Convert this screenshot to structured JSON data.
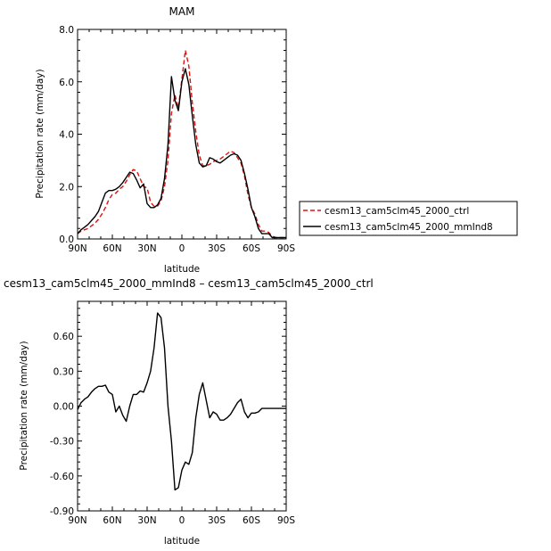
{
  "chart_data": [
    {
      "type": "line",
      "title": "MAM",
      "xlabel": "latitude",
      "ylabel": "Precipitation rate (mm/day)",
      "xlim": [
        -90,
        90
      ],
      "ylim": [
        0,
        8
      ],
      "xticks": [
        -90,
        -60,
        -30,
        0,
        30,
        60,
        90
      ],
      "xtick_labels": [
        "90N",
        "60N",
        "30N",
        "0",
        "30S",
        "60S",
        "90S"
      ],
      "yticks": [
        0,
        2,
        4,
        6,
        8
      ],
      "ytick_labels": [
        "0.0",
        "2.0",
        "4.0",
        "6.0",
        "8.0"
      ],
      "legend_position": "right",
      "series": [
        {
          "name": "cesm13_cam5clm45_2000_ctrl",
          "color": "#dd1111",
          "dash": "dashed",
          "x": [
            -90,
            -87,
            -84,
            -81,
            -78,
            -75,
            -72,
            -69,
            -66,
            -63,
            -60,
            -57,
            -54,
            -51,
            -48,
            -45,
            -42,
            -39,
            -36,
            -33,
            -30,
            -27,
            -24,
            -21,
            -18,
            -15,
            -12,
            -9,
            -6,
            -3,
            0,
            3,
            6,
            9,
            12,
            15,
            18,
            21,
            24,
            27,
            30,
            33,
            36,
            39,
            42,
            45,
            48,
            51,
            54,
            57,
            60,
            63,
            66,
            69,
            72,
            75,
            78,
            81,
            84,
            87,
            90
          ],
          "y": [
            0.2,
            0.3,
            0.35,
            0.4,
            0.5,
            0.6,
            0.75,
            0.95,
            1.2,
            1.5,
            1.7,
            1.75,
            1.9,
            2.0,
            2.2,
            2.45,
            2.65,
            2.6,
            2.3,
            2.0,
            1.95,
            1.4,
            1.25,
            1.25,
            1.45,
            2.0,
            3.0,
            4.8,
            5.5,
            5.0,
            6.1,
            7.2,
            6.6,
            5.2,
            4.1,
            3.2,
            2.8,
            2.8,
            2.85,
            2.95,
            3.0,
            3.05,
            3.15,
            3.25,
            3.35,
            3.3,
            3.1,
            2.9,
            2.4,
            1.7,
            1.2,
            0.95,
            0.55,
            0.3,
            0.3,
            0.25,
            0.1,
            0.05,
            0.05,
            0.05,
            0.05
          ]
        },
        {
          "name": "cesm13_cam5clm45_2000_mmInd8",
          "color": "#000000",
          "dash": "solid",
          "x": [
            -90,
            -87,
            -84,
            -81,
            -78,
            -75,
            -72,
            -69,
            -66,
            -63,
            -60,
            -57,
            -54,
            -51,
            -48,
            -45,
            -42,
            -39,
            -36,
            -33,
            -30,
            -27,
            -24,
            -21,
            -18,
            -15,
            -12,
            -9,
            -6,
            -3,
            0,
            3,
            6,
            9,
            12,
            15,
            18,
            21,
            24,
            27,
            30,
            33,
            36,
            39,
            42,
            45,
            48,
            51,
            54,
            57,
            60,
            63,
            66,
            69,
            72,
            75,
            78,
            81,
            84,
            87,
            90
          ],
          "y": [
            0.2,
            0.35,
            0.45,
            0.55,
            0.7,
            0.85,
            1.05,
            1.4,
            1.75,
            1.85,
            1.85,
            1.9,
            2.0,
            2.15,
            2.35,
            2.55,
            2.5,
            2.25,
            1.95,
            2.1,
            1.35,
            1.2,
            1.2,
            1.3,
            1.55,
            2.3,
            3.6,
            6.2,
            5.3,
            4.9,
            6.0,
            6.5,
            5.9,
            4.7,
            3.6,
            2.9,
            2.75,
            2.8,
            3.1,
            3.05,
            2.95,
            2.9,
            3.0,
            3.1,
            3.2,
            3.25,
            3.2,
            3.0,
            2.5,
            1.9,
            1.2,
            0.85,
            0.4,
            0.2,
            0.2,
            0.2,
            0.05,
            0.05,
            0.05,
            0.05,
            0.05
          ]
        }
      ]
    },
    {
      "type": "line",
      "title": "cesm13_cam5clm45_2000_mmInd8 – cesm13_cam5clm45_2000_ctrl",
      "xlabel": "latitude",
      "ylabel": "Precipitation rate (mm/day)",
      "xlim": [
        -90,
        90
      ],
      "ylim": [
        -0.9,
        0.9
      ],
      "xticks": [
        -90,
        -60,
        -30,
        0,
        30,
        60,
        90
      ],
      "xtick_labels": [
        "90N",
        "60N",
        "30N",
        "0",
        "30S",
        "60S",
        "90S"
      ],
      "yticks": [
        -0.9,
        -0.6,
        -0.3,
        0.0,
        0.3,
        0.6
      ],
      "ytick_labels": [
        "-0.90",
        "-0.60",
        "-0.30",
        "0.00",
        "0.30",
        "0.60"
      ],
      "series": [
        {
          "color": "#000000",
          "dash": "solid",
          "x": [
            -90,
            -87,
            -84,
            -81,
            -78,
            -75,
            -72,
            -69,
            -66,
            -63,
            -60,
            -57,
            -54,
            -51,
            -48,
            -45,
            -42,
            -39,
            -36,
            -33,
            -30,
            -27,
            -24,
            -21,
            -18,
            -15,
            -12,
            -9,
            -6,
            -3,
            0,
            3,
            6,
            9,
            12,
            15,
            18,
            21,
            24,
            27,
            30,
            33,
            36,
            39,
            42,
            45,
            48,
            51,
            54,
            57,
            60,
            63,
            66,
            69,
            72,
            75,
            78,
            81,
            84,
            87,
            90
          ],
          "y": [
            -0.03,
            0.03,
            0.06,
            0.08,
            0.12,
            0.15,
            0.17,
            0.17,
            0.18,
            0.12,
            0.1,
            -0.05,
            0.0,
            -0.08,
            -0.13,
            0.0,
            0.1,
            0.1,
            0.13,
            0.12,
            0.2,
            0.3,
            0.5,
            0.8,
            0.76,
            0.5,
            0.0,
            -0.3,
            -0.72,
            -0.7,
            -0.55,
            -0.48,
            -0.5,
            -0.4,
            -0.1,
            0.1,
            0.2,
            0.05,
            -0.1,
            -0.05,
            -0.07,
            -0.12,
            -0.12,
            -0.1,
            -0.07,
            -0.02,
            0.03,
            0.06,
            -0.05,
            -0.1,
            -0.06,
            -0.06,
            -0.05,
            -0.02,
            -0.02,
            -0.02,
            -0.02,
            -0.02,
            -0.02,
            -0.02,
            -0.02
          ]
        }
      ]
    }
  ]
}
